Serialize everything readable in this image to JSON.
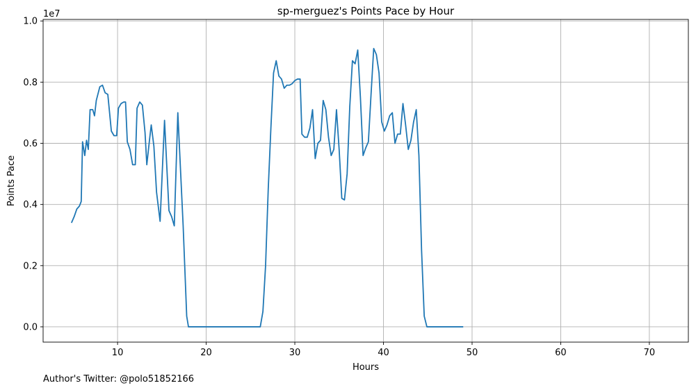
{
  "chart_data": {
    "type": "line",
    "title": "sp-merguez's Points Pace by Hour",
    "xlabel": "Hours",
    "ylabel": "Points Pace",
    "y_offset_text": "1e7",
    "y_scale": 10000000,
    "footnote": "Author's Twitter: @polo51852166",
    "xlim": [
      1.6,
      74.4
    ],
    "ylim": [
      -0.5,
      10.05
    ],
    "xticks": [
      10,
      20,
      30,
      40,
      50,
      60,
      70
    ],
    "xtick_labels": [
      "10",
      "20",
      "30",
      "40",
      "50",
      "60",
      "70"
    ],
    "yticks": [
      0,
      2,
      4,
      6,
      8,
      10
    ],
    "ytick_labels": [
      "0.0",
      "0.2",
      "0.4",
      "0.6",
      "0.8",
      "1.0"
    ],
    "grid": true,
    "series": [
      {
        "name": "Points Pace",
        "color": "#1f77b4",
        "points": [
          [
            4.8,
            3.4
          ],
          [
            5.1,
            3.6
          ],
          [
            5.4,
            3.85
          ],
          [
            5.7,
            3.95
          ],
          [
            5.9,
            4.1
          ],
          [
            6.05,
            6.05
          ],
          [
            6.3,
            5.6
          ],
          [
            6.5,
            6.1
          ],
          [
            6.7,
            5.8
          ],
          [
            6.9,
            7.1
          ],
          [
            7.2,
            7.1
          ],
          [
            7.4,
            6.9
          ],
          [
            7.6,
            7.4
          ],
          [
            8.0,
            7.85
          ],
          [
            8.3,
            7.9
          ],
          [
            8.6,
            7.65
          ],
          [
            8.9,
            7.6
          ],
          [
            9.3,
            6.4
          ],
          [
            9.6,
            6.25
          ],
          [
            9.9,
            6.25
          ],
          [
            10.1,
            7.15
          ],
          [
            10.4,
            7.3
          ],
          [
            10.7,
            7.35
          ],
          [
            10.9,
            7.35
          ],
          [
            11.1,
            6.05
          ],
          [
            11.4,
            5.8
          ],
          [
            11.7,
            5.3
          ],
          [
            12.0,
            5.3
          ],
          [
            12.2,
            7.15
          ],
          [
            12.5,
            7.35
          ],
          [
            12.8,
            7.25
          ],
          [
            13.1,
            6.35
          ],
          [
            13.3,
            5.3
          ],
          [
            13.6,
            6.1
          ],
          [
            13.8,
            6.6
          ],
          [
            14.1,
            5.9
          ],
          [
            14.4,
            4.4
          ],
          [
            14.8,
            3.45
          ],
          [
            15.3,
            6.75
          ],
          [
            15.8,
            3.8
          ],
          [
            16.1,
            3.6
          ],
          [
            16.4,
            3.3
          ],
          [
            16.8,
            7.0
          ],
          [
            17.4,
            3.3
          ],
          [
            17.8,
            0.35
          ],
          [
            18.0,
            0.0
          ],
          [
            19.0,
            0.0
          ],
          [
            21.0,
            0.0
          ],
          [
            23.0,
            0.0
          ],
          [
            25.0,
            0.0
          ],
          [
            26.1,
            0.0
          ],
          [
            26.4,
            0.5
          ],
          [
            26.7,
            2.0
          ],
          [
            27.0,
            4.5
          ],
          [
            27.3,
            6.5
          ],
          [
            27.6,
            8.3
          ],
          [
            27.9,
            8.7
          ],
          [
            28.2,
            8.2
          ],
          [
            28.5,
            8.1
          ],
          [
            28.8,
            7.8
          ],
          [
            29.1,
            7.9
          ],
          [
            29.4,
            7.9
          ],
          [
            29.7,
            7.95
          ],
          [
            30.0,
            8.05
          ],
          [
            30.3,
            8.1
          ],
          [
            30.6,
            8.1
          ],
          [
            30.8,
            6.3
          ],
          [
            31.1,
            6.2
          ],
          [
            31.4,
            6.2
          ],
          [
            31.7,
            6.5
          ],
          [
            32.0,
            7.1
          ],
          [
            32.3,
            5.5
          ],
          [
            32.6,
            6.0
          ],
          [
            32.9,
            6.1
          ],
          [
            33.2,
            7.4
          ],
          [
            33.5,
            7.1
          ],
          [
            33.8,
            6.2
          ],
          [
            34.1,
            5.6
          ],
          [
            34.4,
            5.8
          ],
          [
            34.7,
            7.1
          ],
          [
            35.0,
            5.8
          ],
          [
            35.3,
            4.2
          ],
          [
            35.6,
            4.15
          ],
          [
            35.9,
            5.0
          ],
          [
            36.2,
            7.2
          ],
          [
            36.5,
            8.7
          ],
          [
            36.8,
            8.6
          ],
          [
            37.1,
            9.05
          ],
          [
            37.4,
            7.5
          ],
          [
            37.7,
            5.6
          ],
          [
            38.0,
            5.85
          ],
          [
            38.3,
            6.05
          ],
          [
            38.6,
            7.6
          ],
          [
            38.9,
            9.1
          ],
          [
            39.2,
            8.9
          ],
          [
            39.5,
            8.3
          ],
          [
            39.8,
            6.7
          ],
          [
            40.1,
            6.4
          ],
          [
            40.4,
            6.6
          ],
          [
            40.7,
            6.9
          ],
          [
            41.0,
            7.0
          ],
          [
            41.3,
            6.0
          ],
          [
            41.6,
            6.3
          ],
          [
            41.9,
            6.3
          ],
          [
            42.2,
            7.3
          ],
          [
            42.5,
            6.6
          ],
          [
            42.8,
            5.8
          ],
          [
            43.1,
            6.1
          ],
          [
            43.4,
            6.7
          ],
          [
            43.7,
            7.1
          ],
          [
            44.0,
            5.6
          ],
          [
            44.3,
            2.5
          ],
          [
            44.6,
            0.35
          ],
          [
            44.9,
            0.0
          ],
          [
            46.0,
            0.0
          ],
          [
            48.0,
            0.0
          ],
          [
            49.0,
            0.0
          ]
        ]
      }
    ]
  }
}
